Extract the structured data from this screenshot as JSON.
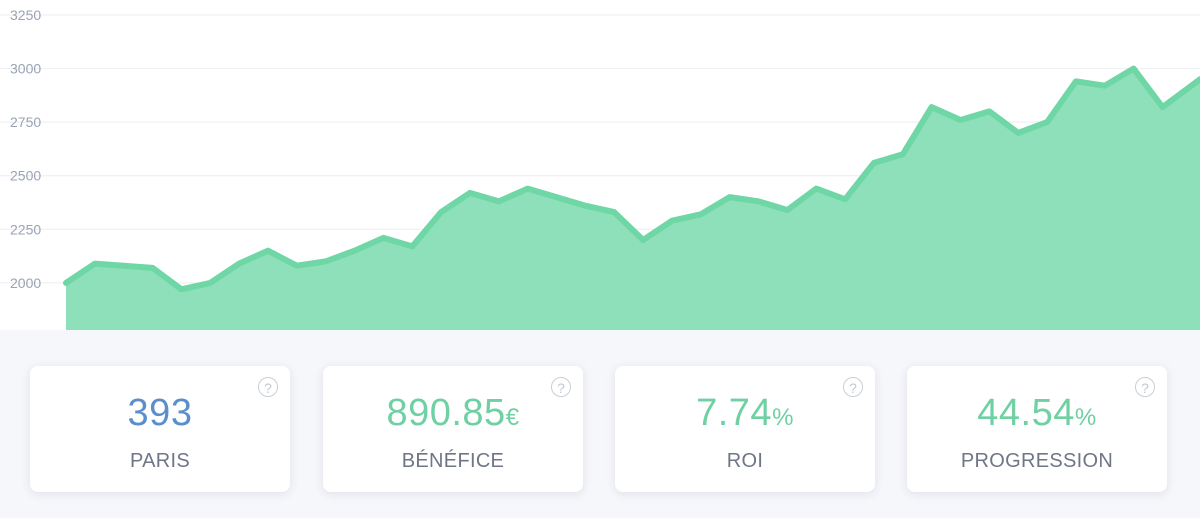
{
  "colors": {
    "accent_green": "#6fd0a3",
    "area_fill": "#8ee0bb",
    "line": "#6fd6a5",
    "blue": "#5a8fcc",
    "label_gray": "#6f7686",
    "axis_gray": "#9aa3b2"
  },
  "chart_data": {
    "type": "area",
    "title": "",
    "xlabel": "",
    "ylabel": "",
    "ylim": [
      1780,
      3320
    ],
    "yticks": [
      2000,
      2250,
      2500,
      2750,
      3000,
      3250
    ],
    "grid": true,
    "legend": "none",
    "x": [
      0,
      10,
      20,
      30,
      40,
      50,
      60,
      70,
      80,
      90,
      100,
      110,
      120,
      130,
      140,
      150,
      160,
      170,
      180,
      190,
      200,
      210,
      220,
      230,
      240,
      250,
      260,
      270,
      280,
      290,
      300,
      310,
      320,
      330,
      340,
      350,
      360,
      370,
      380,
      393
    ],
    "series": [
      {
        "values": [
          2000,
          2090,
          2080,
          2070,
          1970,
          2000,
          2090,
          2150,
          2080,
          2100,
          2150,
          2210,
          2170,
          2330,
          2420,
          2380,
          2440,
          2400,
          2360,
          2330,
          2200,
          2290,
          2320,
          2400,
          2380,
          2340,
          2440,
          2390,
          2560,
          2600,
          2820,
          2760,
          2800,
          2700,
          2750,
          2940,
          2920,
          3000,
          2820,
          2950
        ]
      }
    ]
  },
  "stats": [
    {
      "value": "393",
      "unit": "",
      "label": "PARIS",
      "color": "#5a8fcc"
    },
    {
      "value": "890.85",
      "unit": "€",
      "label": "BÉNÉFICE",
      "color": "#6fd0a3"
    },
    {
      "value": "7.74",
      "unit": "%",
      "label": "ROI",
      "color": "#6fd0a3"
    },
    {
      "value": "44.54",
      "unit": "%",
      "label": "PROGRESSION",
      "color": "#6fd0a3"
    }
  ],
  "help_icon": "help-circle-icon",
  "help_glyph": "?"
}
